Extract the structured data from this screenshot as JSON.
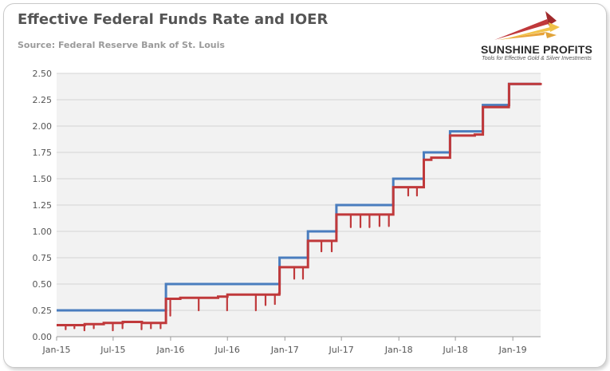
{
  "logo": {
    "name": "SUNSHINE PROFITS",
    "tagline": "Tools for Effective Gold & Silver Investments"
  },
  "colors": {
    "ioer": "#4a7dbe",
    "effr": "#c0393b",
    "plot_bg": "#f2f2f2",
    "grid": "#d4d4d4"
  },
  "chart_data": {
    "type": "line",
    "title": "Effective Federal Funds Rate and IOER",
    "subtitle": "Source: Federal Reserve Bank of St. Louis",
    "xlabel": "",
    "ylabel": "",
    "ylim": [
      0,
      2.5
    ],
    "xlim": [
      "2015-01-01",
      "2019-03-31"
    ],
    "grid": true,
    "legend": "none",
    "y_ticks": [
      "0.00",
      "0.25",
      "0.50",
      "0.75",
      "1.00",
      "1.25",
      "1.50",
      "1.75",
      "2.00",
      "2.25",
      "2.50"
    ],
    "x_ticks": [
      {
        "date": "2015-01-01",
        "label": "Jan-15"
      },
      {
        "date": "2015-07-01",
        "label": "Jul-15"
      },
      {
        "date": "2016-01-01",
        "label": "Jan-16"
      },
      {
        "date": "2016-07-01",
        "label": "Jul-16"
      },
      {
        "date": "2017-01-01",
        "label": "Jan-17"
      },
      {
        "date": "2017-07-01",
        "label": "Jul-17"
      },
      {
        "date": "2018-01-01",
        "label": "Jan-18"
      },
      {
        "date": "2018-07-01",
        "label": "Jul-18"
      },
      {
        "date": "2019-01-01",
        "label": "Jan-19"
      }
    ],
    "series": [
      {
        "color": "#4a7dbe",
        "points": [
          [
            "2015-01-01",
            0.25
          ],
          [
            "2015-12-17",
            0.5
          ],
          [
            "2016-12-15",
            0.75
          ],
          [
            "2017-03-16",
            1.0
          ],
          [
            "2017-06-15",
            1.25
          ],
          [
            "2017-12-14",
            1.5
          ],
          [
            "2018-03-22",
            1.75
          ],
          [
            "2018-06-14",
            1.95
          ],
          [
            "2018-09-27",
            2.2
          ],
          [
            "2018-12-20",
            2.4
          ],
          [
            "2019-03-31",
            2.4
          ]
        ]
      },
      {
        "color": "#c0393b",
        "points": [
          [
            "2015-01-01",
            0.11
          ],
          [
            "2015-03-01",
            0.11
          ],
          [
            "2015-04-01",
            0.12
          ],
          [
            "2015-06-01",
            0.13
          ],
          [
            "2015-08-01",
            0.14
          ],
          [
            "2015-10-01",
            0.13
          ],
          [
            "2015-12-16",
            0.13
          ],
          [
            "2015-12-17",
            0.36
          ],
          [
            "2016-02-01",
            0.37
          ],
          [
            "2016-06-01",
            0.38
          ],
          [
            "2016-07-01",
            0.4
          ],
          [
            "2016-12-14",
            0.41
          ],
          [
            "2016-12-15",
            0.66
          ],
          [
            "2017-03-15",
            0.66
          ],
          [
            "2017-03-16",
            0.91
          ],
          [
            "2017-06-14",
            0.91
          ],
          [
            "2017-06-15",
            1.16
          ],
          [
            "2017-12-13",
            1.16
          ],
          [
            "2017-12-14",
            1.42
          ],
          [
            "2018-03-21",
            1.42
          ],
          [
            "2018-03-22",
            1.68
          ],
          [
            "2018-04-15",
            1.7
          ],
          [
            "2018-06-13",
            1.7
          ],
          [
            "2018-06-14",
            1.91
          ],
          [
            "2018-09-01",
            1.92
          ],
          [
            "2018-09-26",
            1.92
          ],
          [
            "2018-09-27",
            2.18
          ],
          [
            "2018-12-19",
            2.2
          ],
          [
            "2018-12-20",
            2.4
          ],
          [
            "2019-03-31",
            2.41
          ]
        ],
        "dips": [
          [
            "2015-01-30",
            0.07
          ],
          [
            "2015-02-27",
            0.08
          ],
          [
            "2015-03-31",
            0.06
          ],
          [
            "2015-04-30",
            0.08
          ],
          [
            "2015-06-30",
            0.06
          ],
          [
            "2015-07-31",
            0.08
          ],
          [
            "2015-09-30",
            0.07
          ],
          [
            "2015-10-30",
            0.08
          ],
          [
            "2015-11-30",
            0.08
          ],
          [
            "2015-12-31",
            0.2
          ],
          [
            "2016-03-31",
            0.25
          ],
          [
            "2016-06-30",
            0.25
          ],
          [
            "2016-09-30",
            0.25
          ],
          [
            "2016-10-31",
            0.3
          ],
          [
            "2016-11-30",
            0.31
          ],
          [
            "2017-01-31",
            0.55
          ],
          [
            "2017-02-28",
            0.55
          ],
          [
            "2017-04-28",
            0.81
          ],
          [
            "2017-05-31",
            0.81
          ],
          [
            "2017-07-31",
            1.04
          ],
          [
            "2017-08-31",
            1.04
          ],
          [
            "2017-09-29",
            1.04
          ],
          [
            "2017-10-31",
            1.05
          ],
          [
            "2017-11-30",
            1.05
          ],
          [
            "2018-01-31",
            1.34
          ],
          [
            "2018-02-28",
            1.34
          ]
        ]
      }
    ]
  }
}
